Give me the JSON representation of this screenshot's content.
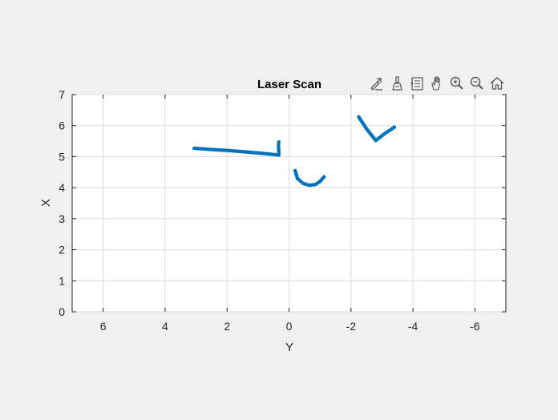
{
  "chart_data": {
    "type": "scatter",
    "title": "Laser Scan",
    "xlabel": "Y",
    "ylabel": "X",
    "xlim": [
      7,
      -7
    ],
    "ylim": [
      0,
      7
    ],
    "x_direction": "reversed",
    "xticks": [
      6,
      4,
      2,
      0,
      -2,
      -4,
      -6
    ],
    "xtick_labels": [
      "6",
      "4",
      "2",
      "0",
      "-2",
      "-4",
      "-6"
    ],
    "yticks": [
      0,
      1,
      2,
      3,
      4,
      5,
      6,
      7
    ],
    "ytick_labels": [
      "0",
      "1",
      "2",
      "3",
      "4",
      "5",
      "6",
      "7"
    ],
    "grid": true,
    "marker_color": "#0072bd",
    "series": [
      {
        "points": [
          [
            3.06,
            5.27
          ],
          [
            2.5,
            5.23
          ],
          [
            2.0,
            5.2
          ],
          [
            1.5,
            5.16
          ],
          [
            1.0,
            5.12
          ],
          [
            0.6,
            5.08
          ],
          [
            0.33,
            5.05
          ],
          [
            0.33,
            5.1
          ],
          [
            0.33,
            5.2
          ],
          [
            0.34,
            5.3
          ],
          [
            0.34,
            5.38
          ],
          [
            0.33,
            5.47
          ]
        ]
      },
      {
        "points": [
          [
            -0.2,
            4.55
          ],
          [
            -0.27,
            4.3
          ],
          [
            -0.45,
            4.14
          ],
          [
            -0.65,
            4.08
          ],
          [
            -0.85,
            4.1
          ],
          [
            -1.0,
            4.2
          ],
          [
            -1.13,
            4.35
          ]
        ]
      },
      {
        "points": [
          [
            -2.25,
            6.28
          ],
          [
            -2.5,
            5.9
          ],
          [
            -2.8,
            5.52
          ],
          [
            -3.1,
            5.75
          ],
          [
            -3.4,
            5.95
          ]
        ]
      }
    ]
  },
  "toolbar": {
    "icons": [
      "export-icon",
      "brush-icon",
      "datatip-icon",
      "pan-icon",
      "zoom-in-icon",
      "zoom-out-icon",
      "home-icon"
    ]
  }
}
